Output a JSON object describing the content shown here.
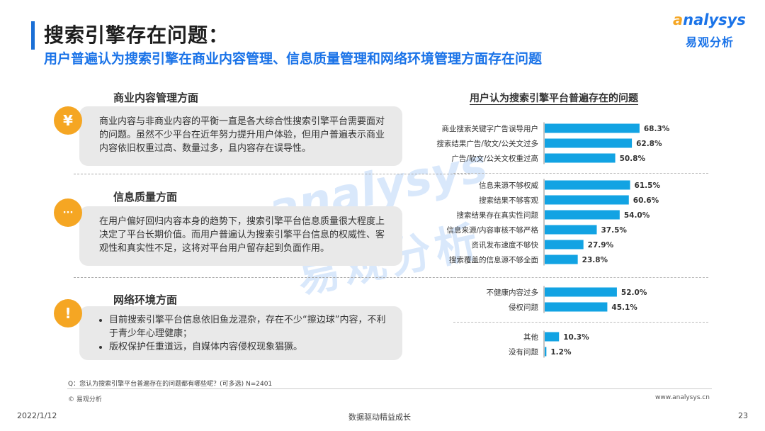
{
  "header": {
    "title": "搜索引擎存在问题：",
    "subtitle": "用户普遍认为搜索引擎在商业内容管理、信息质量管理和网络环境管理方面存在问题"
  },
  "logo": {
    "word_mark": "nalysys",
    "word_mark_initial": "a",
    "chinese": "易观分析"
  },
  "watermark": {
    "word": "analysys",
    "chinese": "易观分析"
  },
  "sections": [
    {
      "title": "商业内容管理方面",
      "icon": "yen-icon",
      "icon_glyph": "¥",
      "text": "商业内容与非商业内容的平衡一直是各大综合性搜索引擎平台需要面对的问题。虽然不少平台在近年努力提升用户体验，但用户普遍表示商业内容依旧权重过高、数量过多，且内容存在误导性。"
    },
    {
      "title": "信息质量方面",
      "icon": "chat-bubble-icon",
      "icon_glyph": "···",
      "text": "在用户偏好回归内容本身的趋势下，搜索引擎平台信息质量很大程度上决定了平台长期价值。而用户普遍认为搜索引擎平台信息的权威性、客观性和真实性不足，这将对平台用户留存起到负面作用。"
    },
    {
      "title": "网络环境方面",
      "icon": "exclamation-icon",
      "icon_glyph": "!",
      "bullets": [
        "目前搜索引擎平台信息依旧鱼龙混杂，存在不少“擦边球”内容，不利于青少年心理健康；",
        "版权保护任重道远，自媒体内容侵权现象猖獗。"
      ]
    }
  ],
  "chart_data": {
    "type": "bar",
    "orientation": "horizontal",
    "title": "用户认为搜索引擎平台普遍存在的问题",
    "unit": "%",
    "xlim": [
      0,
      100
    ],
    "grid": false,
    "bar_color": "#12a3e3",
    "groups": [
      {
        "categories": [
          "商业搜索关键字广告误导用户",
          "搜索结果广告/软文/公关文过多",
          "广告/软文/公关文权重过高"
        ],
        "values": [
          68.3,
          62.8,
          50.8
        ],
        "labels": [
          "68.3%",
          "62.8%",
          "50.8%"
        ]
      },
      {
        "categories": [
          "信息来源不够权威",
          "搜索结果不够客观",
          "搜索结果存在真实性问题",
          "信息来源/内容审核不够严格",
          "资讯发布速度不够快",
          "搜索覆盖的信息源不够全面"
        ],
        "values": [
          61.5,
          60.6,
          54.0,
          37.5,
          27.9,
          23.8
        ],
        "labels": [
          "61.5%",
          "60.6%",
          "54.0%",
          "37.5%",
          "27.9%",
          "23.8%"
        ]
      },
      {
        "categories": [
          "不健康内容过多",
          "侵权问题"
        ],
        "values": [
          52.0,
          45.1
        ],
        "labels": [
          "52.0%",
          "45.1%"
        ]
      },
      {
        "categories": [
          "其他",
          "没有问题"
        ],
        "values": [
          10.3,
          1.2
        ],
        "labels": [
          "10.3%",
          "1.2%"
        ]
      }
    ]
  },
  "footer": {
    "question": "Q：您认为搜索引擎平台普遍存在的问题都有哪些呢？(可多选) N=2401",
    "copyright": "© 易观分析",
    "site": "www.analysys.cn",
    "date": "2022/1/12",
    "slogan": "数据驱动精益成长",
    "page": "23"
  }
}
